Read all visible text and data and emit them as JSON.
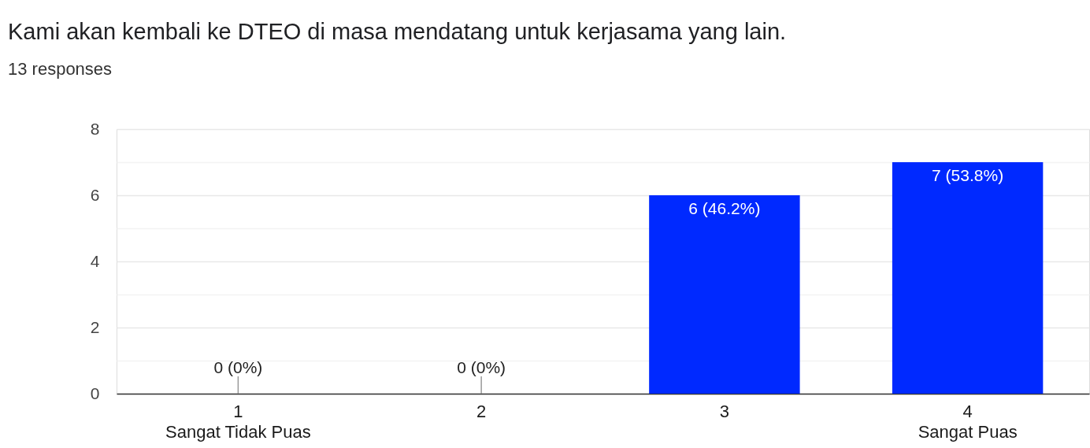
{
  "chart_data": {
    "type": "bar",
    "title": "Kami akan kembali ke DTEO di masa mendatang untuk kerjasama yang lain.",
    "subtitle": "13 responses",
    "categories": [
      "1\nSangat Tidak Puas",
      "2",
      "3",
      "4\nSangat Puas"
    ],
    "values": [
      0,
      0,
      6,
      7
    ],
    "value_labels": [
      "0 (0%)",
      "0 (0%)",
      "6 (46.2%)",
      "7 (53.8%)"
    ],
    "color": "#0029ff",
    "ylim": [
      0,
      8
    ],
    "yticks": [
      0,
      {
        "value": 1,
        "label": null
      },
      2,
      {
        "value": 3,
        "label": null
      },
      4,
      {
        "value": 5,
        "label": null
      },
      6,
      {
        "value": 7,
        "label": null
      },
      8
    ],
    "grid": "y"
  }
}
